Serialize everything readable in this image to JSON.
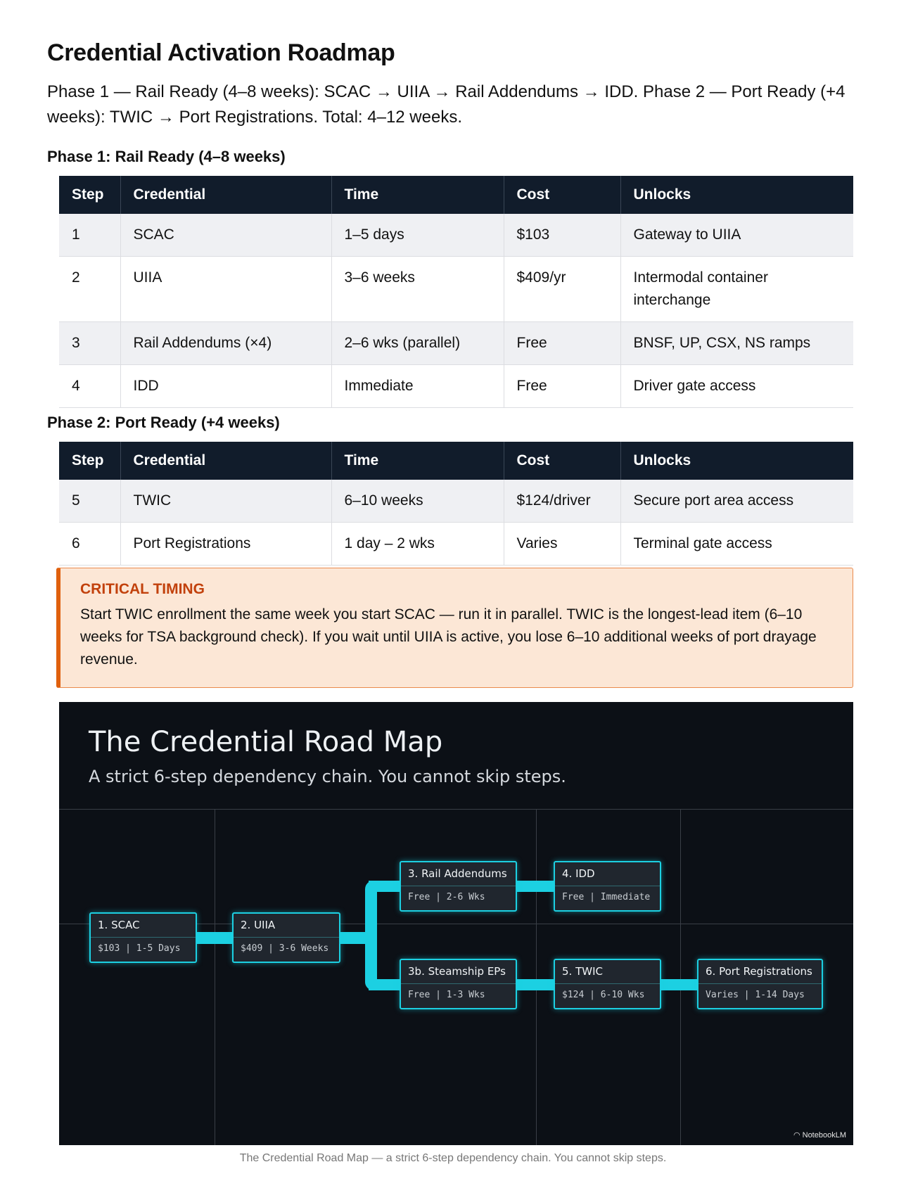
{
  "title": "Credential Activation Roadmap",
  "intro": "Phase 1 — Rail Ready (4–8 weeks): SCAC → UIIA → Rail Addendums → IDD. Phase 2 — Port Ready (+4 weeks): TWIC → Port Registrations. Total: 4–12 weeks.",
  "phase1": {
    "heading": "Phase 1: Rail Ready (4–8 weeks)",
    "columns": [
      "Step",
      "Credential",
      "Time",
      "Cost",
      "Unlocks"
    ],
    "rows": [
      [
        "1",
        "SCAC",
        "1–5 days",
        "$103",
        "Gateway to UIIA"
      ],
      [
        "2",
        "UIIA",
        "3–6 weeks",
        "$409/yr",
        "Intermodal container interchange"
      ],
      [
        "3",
        "Rail Addendums (×4)",
        "2–6 wks (parallel)",
        "Free",
        "BNSF, UP, CSX, NS ramps"
      ],
      [
        "4",
        "IDD",
        "Immediate",
        "Free",
        "Driver gate access"
      ]
    ]
  },
  "phase2": {
    "heading": "Phase 2: Port Ready (+4 weeks)",
    "columns": [
      "Step",
      "Credential",
      "Time",
      "Cost",
      "Unlocks"
    ],
    "rows": [
      [
        "5",
        "TWIC",
        "6–10 weeks",
        "$124/driver",
        "Secure port area access"
      ],
      [
        "6",
        "Port Registrations",
        "1 day – 2 wks",
        "Varies",
        "Terminal gate access"
      ]
    ]
  },
  "callout": {
    "title": "CRITICAL TIMING",
    "text": "Start TWIC enrollment the same week you start SCAC — run it in parallel. TWIC is the longest-lead item (6–10 weeks for TSA background check). If you wait until UIIA is active, you lose 6–10 additional weeks of port drayage revenue."
  },
  "diagram": {
    "title": "The Credential Road Map",
    "subtitle": "A strict 6-step dependency chain. You cannot skip steps.",
    "accent": "#1cd0e2",
    "nodes": [
      {
        "name": "1. SCAC",
        "detail": "$103 | 1-5 Days"
      },
      {
        "name": "2. UIIA",
        "detail": "$409 | 3-6 Weeks"
      },
      {
        "name": "3. Rail Addendums",
        "detail": "Free | 2-6 Wks"
      },
      {
        "name": "4. IDD",
        "detail": "Free | Immediate"
      },
      {
        "name": "3b. Steamship EPs",
        "detail": "Free | 1-3 Wks"
      },
      {
        "name": "5. TWIC",
        "detail": "$124 | 6-10 Wks"
      },
      {
        "name": "6. Port Registrations",
        "detail": "Varies | 1-14 Days"
      }
    ],
    "logo": "NotebookLM"
  },
  "caption": "The Credential Road Map — a strict 6-step dependency chain. You cannot skip steps."
}
